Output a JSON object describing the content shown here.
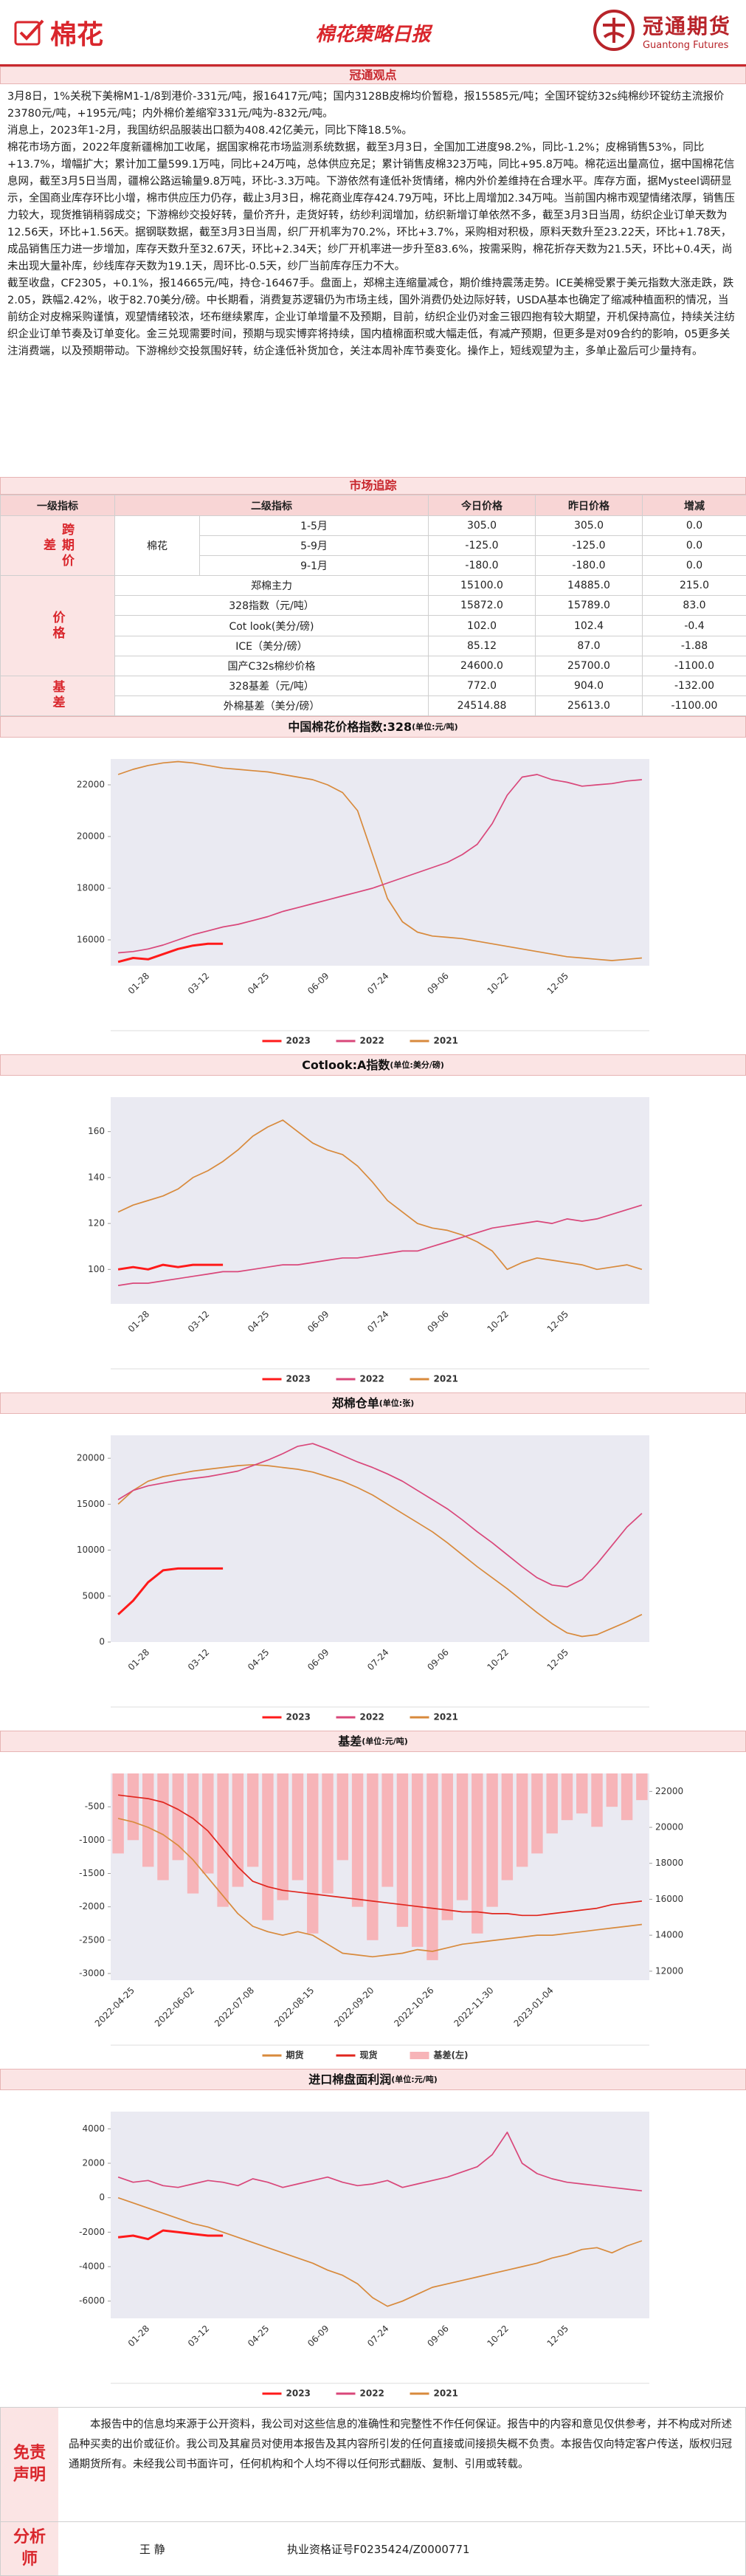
{
  "header": {
    "logo_text": "棉花",
    "title": "棉花策略日报",
    "brand": "冠通期货",
    "brand_en": "Guantong Futures"
  },
  "sections": {
    "view": "冠通观点",
    "market": "市场追踪"
  },
  "paragraphs": [
    "3月8日，1%关税下美棉M1-1/8到港价-331元/吨，报16417元/吨；国内3128B皮棉均价暂稳，报15585元/吨；全国环锭纺32s纯棉纱环锭纺主流报价23780元/吨，+195元/吨；内外棉价差缩窄331元/吨为-832元/吨。",
    "消息上，2023年1-2月，我国纺织品服装出口额为408.42亿美元，同比下降18.5%。",
    "棉花市场方面，2022年度新疆棉加工收尾，据国家棉花市场监测系统数据，截至3月3日，全国加工进度98.2%，同比-1.2%；皮棉销售53%，同比+13.7%，增幅扩大；累计加工量599.1万吨，同比+24万吨，总体供应充足；累计销售皮棉323万吨，同比+95.8万吨。棉花运出量高位，据中国棉花信息网，截至3月5日当周，疆棉公路运输量9.8万吨，环比-3.3万吨。下游依然有逢低补货情绪，棉内外价差维持在合理水平。库存方面，据Mysteel调研显示，全国商业库存环比小增，棉市供应压力仍存，截止3月3日，棉花商业库存424.79万吨，环比上周增加2.34万吨。当前国内棉市观望情绪浓厚，销售压力较大，现货推销稍弱成交；下游棉纱交投好转，量价齐升，走货好转，纺纱利润增加，纺织新增订单依然不多，截至3月3日当周，纺织企业订单天数为12.56天，环比+1.56天。据钢联数据，截至3月3日当周，织厂开机率为70.2%，环比+3.7%，采购相对积极，原料天数升至23.22天，环比+1.78天，成品销售压力进一步增加，库存天数升至32.67天，环比+2.34天；纱厂开机率进一步升至83.6%，按需采购，棉花折存天数为21.5天，环比+0.4天，尚未出现大量补库，纱线库存天数为19.1天，周环比-0.5天，纱厂当前库存压力不大。",
    "截至收盘，CF2305，+0.1%，报14665元/吨，持仓-16467手。盘面上，郑棉主连缩量减仓，期价维持震荡走势。ICE美棉受累于美元指数大涨走跌，跌2.05，跌幅2.42%，收于82.70美分/磅。中长期看，消费复苏逻辑仍为市场主线，国外消费仍处边际好转，USDA基本也确定了缩减种植面积的情况，当前纺企对皮棉采购谨慎，观望情绪较浓，坯布继续累库，企业订单增量不及预期，目前，纺织企业仍对金三银四抱有较大期望，开机保持高位，持续关注纺织企业订单节奏及订单变化。金三兑现需要时间，预期与现实博弈将持续，国内植棉面积或大幅走低，有减产预期，但更多是对09合约的影响，05更多关注消费端，以及预期带动。下游棉纱交投氛围好转，纺企逢低补货加仓，关注本周补库节奏变化。操作上，短线观望为主，多单止盈后可少量持有。"
  ],
  "table": {
    "headers": [
      "一级指标",
      "二级指标",
      "今日价格",
      "昨日价格",
      "增减"
    ],
    "spread": {
      "group": "跨期价差",
      "item": "棉花",
      "rows": [
        [
          "1-5月",
          "305.0",
          "305.0",
          "0.0"
        ],
        [
          "5-9月",
          "-125.0",
          "-125.0",
          "0.0"
        ],
        [
          "9-1月",
          "-180.0",
          "-180.0",
          "0.0"
        ]
      ]
    },
    "price": {
      "group": "价格",
      "rows": [
        [
          "郑棉主力",
          "15100.0",
          "14885.0",
          "215.0"
        ],
        [
          "328指数（元/吨）",
          "15872.0",
          "15789.0",
          "83.0"
        ],
        [
          "Cot look(美分/磅)",
          "102.0",
          "102.4",
          "-0.4"
        ],
        [
          "ICE（美分/磅）",
          "85.12",
          "87.0",
          "-1.88"
        ],
        [
          "国产C32s棉纱价格",
          "24600.0",
          "25700.0",
          "-1100.0"
        ]
      ]
    },
    "basis": {
      "group": "基差",
      "rows": [
        [
          "328基差（元/吨）",
          "772.0",
          "904.0",
          "-132.00"
        ],
        [
          "外棉基差（美分/磅）",
          "24514.88",
          "25613.0",
          "-1100.00"
        ]
      ]
    }
  },
  "chart_data": [
    {
      "type": "line",
      "title": "中国棉花价格指数:328",
      "unit": "(单位:元/吨)",
      "categories": [
        null,
        null,
        "01-28",
        null,
        null,
        null,
        "03-12",
        null,
        null,
        null,
        "04-25",
        null,
        null,
        null,
        "06-09",
        null,
        null,
        null,
        "07-24",
        null,
        null,
        null,
        "09-06",
        null,
        null,
        null,
        "10-22",
        null,
        null,
        null,
        "12-05",
        null,
        null,
        null,
        null,
        null
      ],
      "series": [
        {
          "name": "2023",
          "color": "#ff1a1a",
          "values": [
            15150,
            15300,
            15250,
            15450,
            15650,
            15780,
            15850,
            15850,
            null,
            null,
            null,
            null,
            null,
            null,
            null,
            null,
            null,
            null,
            null,
            null,
            null,
            null,
            null,
            null,
            null,
            null,
            null,
            null,
            null,
            null,
            null,
            null,
            null,
            null,
            null,
            null
          ]
        },
        {
          "name": "2022",
          "color": "#d9477a",
          "values": [
            15500,
            15550,
            15650,
            15800,
            16000,
            16200,
            16350,
            16500,
            16600,
            16750,
            16900,
            17100,
            17250,
            17400,
            17550,
            17700,
            17850,
            18000,
            18200,
            18400,
            18600,
            18800,
            19000,
            19300,
            19700,
            20500,
            21600,
            22300,
            22400,
            22200,
            22100,
            21950,
            22000,
            22050,
            22150,
            22200
          ]
        },
        {
          "name": "2021",
          "color": "#d88a3c",
          "values": [
            22400,
            22600,
            22750,
            22850,
            22900,
            22850,
            22750,
            22650,
            22600,
            22550,
            22500,
            22400,
            22300,
            22200,
            22000,
            21700,
            21000,
            19300,
            17600,
            16700,
            16300,
            16150,
            16100,
            16050,
            15950,
            15850,
            15750,
            15650,
            15550,
            15450,
            15350,
            15300,
            15250,
            15200,
            15250,
            15300
          ]
        }
      ],
      "ylim": [
        15000,
        23000
      ],
      "yticks": [
        16000,
        18000,
        20000,
        22000
      ]
    },
    {
      "type": "line",
      "title": "Cotlook:A指数",
      "unit": "(单位:美分/磅)",
      "categories": [
        null,
        null,
        "01-28",
        null,
        null,
        null,
        "03-12",
        null,
        null,
        null,
        "04-25",
        null,
        null,
        null,
        "06-09",
        null,
        null,
        null,
        "07-24",
        null,
        null,
        null,
        "09-06",
        null,
        null,
        null,
        "10-22",
        null,
        null,
        null,
        "12-05",
        null,
        null,
        null,
        null,
        null
      ],
      "series": [
        {
          "name": "2023",
          "color": "#ff1a1a",
          "values": [
            100,
            101,
            100,
            102,
            101,
            102,
            102,
            102,
            null,
            null,
            null,
            null,
            null,
            null,
            null,
            null,
            null,
            null,
            null,
            null,
            null,
            null,
            null,
            null,
            null,
            null,
            null,
            null,
            null,
            null,
            null,
            null,
            null,
            null,
            null,
            null
          ]
        },
        {
          "name": "2022",
          "color": "#d9477a",
          "values": [
            93,
            94,
            94,
            95,
            96,
            97,
            98,
            99,
            99,
            100,
            101,
            102,
            102,
            103,
            104,
            105,
            105,
            106,
            107,
            108,
            108,
            110,
            112,
            114,
            116,
            118,
            119,
            120,
            121,
            120,
            122,
            121,
            122,
            124,
            126,
            128
          ]
        },
        {
          "name": "2021",
          "color": "#d88a3c",
          "values": [
            125,
            128,
            130,
            132,
            135,
            140,
            143,
            147,
            152,
            158,
            162,
            165,
            160,
            155,
            152,
            150,
            145,
            138,
            130,
            125,
            120,
            118,
            117,
            115,
            112,
            108,
            100,
            103,
            105,
            104,
            103,
            102,
            100,
            101,
            102,
            100
          ]
        }
      ],
      "ylim": [
        85,
        175
      ],
      "yticks": [
        100,
        120,
        140,
        160
      ]
    },
    {
      "type": "line",
      "title": "郑棉仓单",
      "unit": "(单位:张)",
      "categories": [
        null,
        null,
        "01-28",
        null,
        null,
        null,
        "03-12",
        null,
        null,
        null,
        "04-25",
        null,
        null,
        null,
        "06-09",
        null,
        null,
        null,
        "07-24",
        null,
        null,
        null,
        "09-06",
        null,
        null,
        null,
        "10-22",
        null,
        null,
        null,
        "12-05",
        null,
        null,
        null,
        null,
        null
      ],
      "series": [
        {
          "name": "2023",
          "color": "#ff1a1a",
          "values": [
            3000,
            4500,
            6500,
            7800,
            8000,
            8000,
            8000,
            8000,
            null,
            null,
            null,
            null,
            null,
            null,
            null,
            null,
            null,
            null,
            null,
            null,
            null,
            null,
            null,
            null,
            null,
            null,
            null,
            null,
            null,
            null,
            null,
            null,
            null,
            null,
            null,
            null
          ]
        },
        {
          "name": "2022",
          "color": "#d9477a",
          "values": [
            15500,
            16500,
            17000,
            17300,
            17600,
            17800,
            18000,
            18300,
            18600,
            19200,
            19800,
            20500,
            21300,
            21600,
            21000,
            20300,
            19600,
            19000,
            18300,
            17500,
            16500,
            15500,
            14500,
            13300,
            12000,
            10800,
            9500,
            8200,
            7000,
            6200,
            6000,
            6800,
            8500,
            10500,
            12500,
            14000
          ]
        },
        {
          "name": "2021",
          "color": "#d88a3c",
          "values": [
            15000,
            16500,
            17500,
            18000,
            18300,
            18600,
            18800,
            19000,
            19200,
            19300,
            19200,
            19000,
            18800,
            18500,
            18000,
            17500,
            16800,
            16000,
            15000,
            14000,
            13000,
            12000,
            10800,
            9500,
            8200,
            7000,
            5800,
            4500,
            3200,
            2000,
            1000,
            600,
            800,
            1500,
            2200,
            3000
          ]
        }
      ],
      "ylim": [
        0,
        22500
      ],
      "yticks": [
        0,
        5000,
        10000,
        15000,
        20000
      ]
    },
    {
      "type": "combo",
      "title": "基差",
      "unit": "(单位:元/吨)",
      "categories": [
        null,
        "2022-04-25",
        null,
        null,
        null,
        "2022-06-02",
        null,
        null,
        null,
        "2022-07-08",
        null,
        null,
        null,
        "2022-08-15",
        null,
        null,
        null,
        "2022-09-20",
        null,
        null,
        null,
        "2022-10-26",
        null,
        null,
        null,
        "2022-11-30",
        null,
        null,
        null,
        "2023-01-04",
        null,
        null,
        null,
        null,
        null,
        null
      ],
      "series": [
        {
          "name": "期货",
          "color": "#d88a3c",
          "axis": "y2",
          "values": [
            20500,
            20300,
            20000,
            19600,
            19000,
            18200,
            17200,
            16200,
            15200,
            14500,
            14200,
            14000,
            14200,
            14000,
            13500,
            13000,
            12900,
            12800,
            12900,
            13000,
            13200,
            13100,
            13300,
            13500,
            13600,
            13700,
            13800,
            13900,
            14000,
            14000,
            14100,
            14200,
            14300,
            14400,
            14500,
            14600
          ]
        },
        {
          "name": "现货",
          "color": "#e0261e",
          "axis": "y2",
          "values": [
            21800,
            21700,
            21600,
            21400,
            21000,
            20500,
            19800,
            18800,
            17800,
            17000,
            16700,
            16500,
            16400,
            16300,
            16200,
            16100,
            16000,
            15900,
            15800,
            15700,
            15600,
            15500,
            15400,
            15300,
            15300,
            15200,
            15200,
            15100,
            15100,
            15200,
            15300,
            15400,
            15500,
            15700,
            15800,
            15900
          ]
        },
        {
          "name": "基差(左)",
          "color": "#f7b4b8",
          "kind": "bar",
          "values": [
            -1200,
            -1000,
            -1400,
            -1600,
            -1300,
            -1800,
            -1500,
            -2000,
            -1700,
            -1400,
            -2200,
            -1900,
            -1600,
            -2400,
            -1800,
            -1300,
            -2000,
            -2500,
            -1700,
            -2300,
            -2600,
            -2800,
            -2200,
            -1900,
            -2400,
            -2000,
            -1600,
            -1400,
            -1200,
            -900,
            -700,
            -600,
            -800,
            -500,
            -700,
            -400
          ]
        }
      ],
      "ylim": [
        -3100,
        0
      ],
      "yticks": [
        -500,
        -1000,
        -1500,
        -2000,
        -2500,
        -3000
      ],
      "y2lim": [
        11500,
        23000
      ],
      "y2ticks": [
        12000,
        14000,
        16000,
        18000,
        20000,
        22000
      ]
    },
    {
      "type": "line",
      "title": "进口棉盘面利润",
      "unit": "(单位:元/吨)",
      "categories": [
        null,
        null,
        "01-28",
        null,
        null,
        null,
        "03-12",
        null,
        null,
        null,
        "04-25",
        null,
        null,
        null,
        "06-09",
        null,
        null,
        null,
        "07-24",
        null,
        null,
        null,
        "09-06",
        null,
        null,
        null,
        "10-22",
        null,
        null,
        null,
        "12-05",
        null,
        null,
        null,
        null,
        null
      ],
      "series": [
        {
          "name": "2023",
          "color": "#ff1a1a",
          "values": [
            -2300,
            -2200,
            -2400,
            -1900,
            -2000,
            -2100,
            -2200,
            -2200,
            null,
            null,
            null,
            null,
            null,
            null,
            null,
            null,
            null,
            null,
            null,
            null,
            null,
            null,
            null,
            null,
            null,
            null,
            null,
            null,
            null,
            null,
            null,
            null,
            null,
            null,
            null,
            null
          ]
        },
        {
          "name": "2022",
          "color": "#d9477a",
          "values": [
            1200,
            900,
            1000,
            700,
            600,
            800,
            1000,
            900,
            700,
            1100,
            900,
            600,
            800,
            1000,
            1200,
            900,
            700,
            800,
            1000,
            600,
            800,
            1000,
            1200,
            1500,
            1800,
            2500,
            3800,
            2000,
            1400,
            1100,
            900,
            800,
            700,
            600,
            500,
            400
          ]
        },
        {
          "name": "2021",
          "color": "#d88a3c",
          "values": [
            0,
            -300,
            -600,
            -900,
            -1200,
            -1500,
            -1700,
            -2000,
            -2300,
            -2600,
            -2900,
            -3200,
            -3500,
            -3800,
            -4200,
            -4500,
            -5000,
            -5800,
            -6300,
            -6000,
            -5600,
            -5200,
            -5000,
            -4800,
            -4600,
            -4400,
            -4200,
            -4000,
            -3800,
            -3500,
            -3300,
            -3000,
            -2900,
            -3200,
            -2800,
            -2500
          ]
        }
      ],
      "ylim": [
        -7000,
        5000
      ],
      "yticks": [
        -6000,
        -4000,
        -2000,
        0,
        2000,
        4000
      ]
    }
  ],
  "disclaimer": {
    "label": "免责声明",
    "text": "本报告中的信息均来源于公开资料，我公司对这些信息的准确性和完整性不作任何保证。报告中的内容和意见仅供参考，并不构成对所述品种买卖的出价或征价。我公司及其雇员对使用本报告及其内容所引发的任何直接或间接损失概不负责。本报告仅向特定客户传送，版权归冠通期货所有。未经我公司书面许可，任何机构和个人均不得以任何形式翻版、复制、引用或转载。"
  },
  "analyst": {
    "label": "分析师",
    "name": "王 静",
    "license": "执业资格证号F0235424/Z0000771"
  }
}
